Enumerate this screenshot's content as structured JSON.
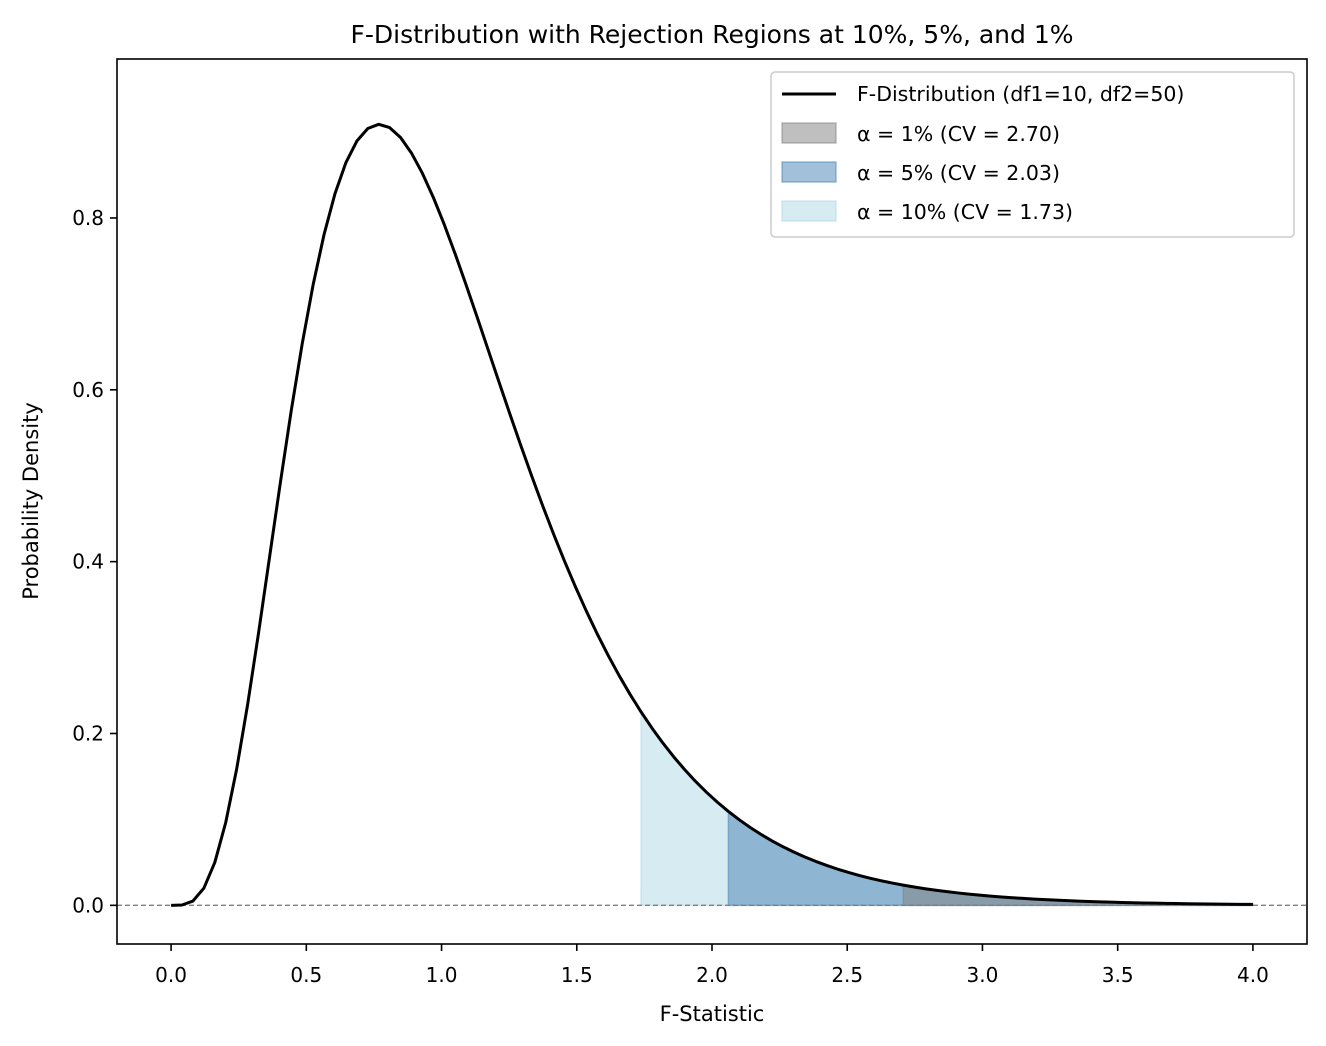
{
  "chart_data": {
    "type": "area",
    "title": "F-Distribution with Rejection Regions at 10%, 5%, and 1%",
    "xlabel": "F-Statistic",
    "ylabel": "Probability Density",
    "xlim": [
      -0.2,
      4.2
    ],
    "ylim": [
      -0.045,
      0.985
    ],
    "grid": false,
    "legend_position": "top-right",
    "x_ticks": [
      "0.0",
      "0.5",
      "1.0",
      "1.5",
      "2.0",
      "2.5",
      "3.0",
      "3.5",
      "4.0"
    ],
    "y_ticks": [
      "0.0",
      "0.2",
      "0.4",
      "0.6",
      "0.8"
    ],
    "distribution": {
      "df1": 10,
      "df2": 50,
      "x_min": 0,
      "x_max": 4,
      "samples": 100
    },
    "series": [
      {
        "name": "F-Distribution (df1=10, df2=50)",
        "kind": "line",
        "color": "#000000"
      }
    ],
    "regions": [
      {
        "name": "α = 1% (CV = 2.70)",
        "alpha": 0.01,
        "critical_value": 2.7,
        "color": "#808080",
        "opacity": 0.5
      },
      {
        "name": "α = 5% (CV = 2.03)",
        "alpha": 0.05,
        "critical_value": 2.03,
        "color": "#4682b4",
        "opacity": 0.5
      },
      {
        "name": "α = 10% (CV = 1.73)",
        "alpha": 0.1,
        "critical_value": 1.73,
        "color": "#add8e6",
        "opacity": 0.5
      }
    ],
    "reference_line": {
      "y": 0,
      "style": "dashed",
      "color": "#808080"
    }
  }
}
